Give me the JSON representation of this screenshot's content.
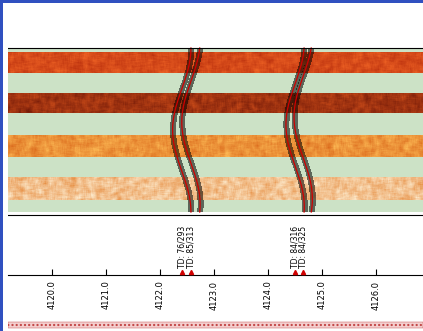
{
  "chart_data": {
    "type": "image_log",
    "xlim": [
      4119.18,
      4126.87
    ],
    "xticks": [
      4120.0,
      4121.0,
      4122.0,
      4123.0,
      4124.0,
      4125.0,
      4126.0
    ],
    "tick_labels": "x",
    "annotations": [
      {
        "x": 4122.4,
        "text": "TD: 76/293"
      },
      {
        "x": 4122.57,
        "text": "TD: 85/313"
      },
      {
        "x": 4124.5,
        "text": "TD: 84/316"
      },
      {
        "x": 4124.65,
        "text": "TD: 84/325"
      }
    ]
  }
}
